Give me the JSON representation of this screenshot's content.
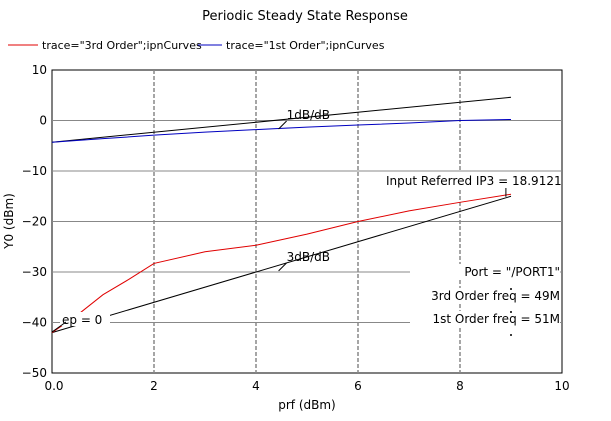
{
  "chart_data": {
    "type": "line",
    "title": "Periodic Steady State Response",
    "xlabel": "prf (dBm)",
    "ylabel": "Y0 (dBm)",
    "xlim": [
      0,
      10
    ],
    "ylim": [
      -50,
      10
    ],
    "xticks": [
      "0.0",
      "2",
      "4",
      "6",
      "8",
      "10"
    ],
    "yticks": [
      "10",
      "0",
      "−10",
      "−20",
      "−30",
      "−40",
      "−50"
    ],
    "grid": true,
    "legend_position": "top-left",
    "series": [
      {
        "name": "trace=\"3rd Order\";ipnCurves",
        "color": "#e00000",
        "x": [
          0,
          0.5,
          1,
          1.5,
          2,
          3,
          4,
          5,
          6,
          7,
          8,
          9
        ],
        "y": [
          -42,
          -38.5,
          -34.5,
          -31.5,
          -28.3,
          -26,
          -24.7,
          -22.5,
          -20,
          -17.9,
          -16.2,
          -14.6
        ]
      },
      {
        "name": "trace=\"1st Order\";ipnCurves",
        "color": "#0000c0",
        "x": [
          0,
          1,
          2,
          3,
          4,
          5,
          6,
          7,
          8,
          9
        ],
        "y": [
          -4.3,
          -3.6,
          -2.9,
          -2.3,
          -1.8,
          -1.3,
          -0.9,
          -0.5,
          0,
          0.2
        ]
      }
    ],
    "extrapolation_lines": [
      {
        "label": "1dB/dB",
        "x": [
          0,
          9
        ],
        "y": [
          -4.3,
          4.6
        ],
        "label_at": [
          4.6,
          -0.1
        ]
      },
      {
        "label": "3dB/dB",
        "x": [
          0,
          9
        ],
        "y": [
          -42,
          -15
        ],
        "label_at": [
          4.6,
          -28.2
        ]
      }
    ],
    "annotations": [
      {
        "text": "Input Referred IP3 = 18.9121",
        "anchor": [
          8.9,
          -15.1
        ]
      },
      {
        "text": "ep = 0",
        "anchor": [
          0.9,
          -40
        ]
      },
      {
        "text": "Port = \"/PORT1\""
      },
      {
        "text": "3rd Order freq = 49M"
      },
      {
        "text": "1st Order freq = 51M"
      }
    ]
  }
}
